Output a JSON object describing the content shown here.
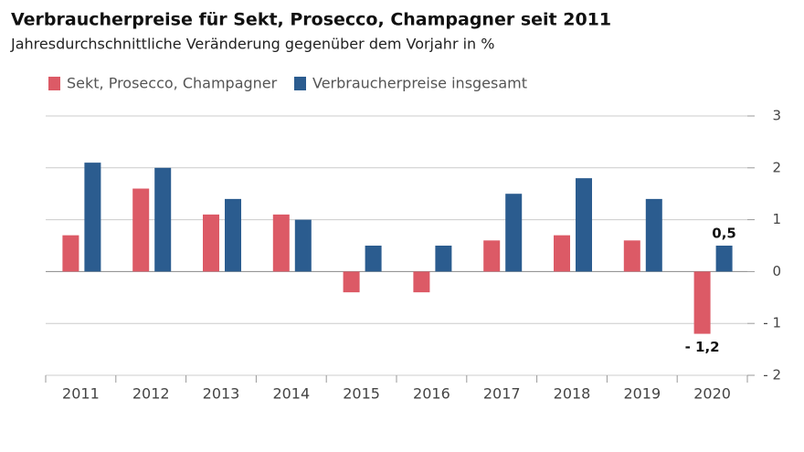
{
  "chart_data": {
    "type": "bar",
    "title": "Verbraucherpreise für Sekt, Prosecco, Champagner seit 2011",
    "subtitle": "Jahresdurchschnittliche Veränderung gegenüber dem Vorjahr in %",
    "categories": [
      "2011",
      "2012",
      "2013",
      "2014",
      "2015",
      "2016",
      "2017",
      "2018",
      "2019",
      "2020"
    ],
    "series": [
      {
        "name": "Sekt, Prosecco, Champagner",
        "color": "#dc5a66",
        "values": [
          0.7,
          1.6,
          1.1,
          1.1,
          -0.4,
          -0.4,
          0.6,
          0.7,
          0.6,
          -1.2
        ],
        "value_labels": [
          null,
          null,
          null,
          null,
          null,
          null,
          null,
          null,
          null,
          "- 1,2"
        ]
      },
      {
        "name": "Verbraucherpreise insgesamt",
        "color": "#2b5c8f",
        "values": [
          2.1,
          2.0,
          1.4,
          1.0,
          0.5,
          0.5,
          1.5,
          1.8,
          1.4,
          0.5
        ],
        "value_labels": [
          null,
          null,
          null,
          null,
          null,
          null,
          null,
          null,
          null,
          "0,5"
        ]
      }
    ],
    "ylim": [
      -2,
      3
    ],
    "yticks": [
      {
        "value": -2,
        "label": "- 2"
      },
      {
        "value": -1,
        "label": "- 1"
      },
      0,
      1,
      2,
      3
    ],
    "grid": true,
    "legend": "top-left"
  }
}
